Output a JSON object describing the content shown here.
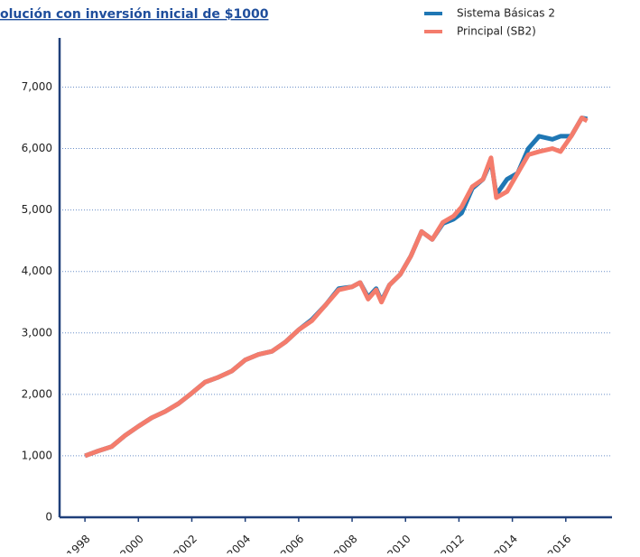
{
  "chart_data": {
    "type": "line",
    "title": "olución con inversión inicial de $1000",
    "series": [
      {
        "name": "Sistema Básicas 2",
        "color": "#1f77b4",
        "x": [
          1998.0,
          1998.5,
          1999.0,
          1999.5,
          2000.0,
          2000.5,
          2001.0,
          2001.5,
          2002.0,
          2002.5,
          2003.0,
          2003.5,
          2004.0,
          2004.5,
          2005.0,
          2005.5,
          2006.0,
          2006.5,
          2007.0,
          2007.5,
          2008.0,
          2008.3,
          2008.6,
          2008.9,
          2009.1,
          2009.4,
          2009.8,
          2010.2,
          2010.6,
          2011.0,
          2011.4,
          2011.8,
          2012.1,
          2012.5,
          2012.9,
          2013.2,
          2013.4,
          2013.8,
          2014.2,
          2014.6,
          2015.0,
          2015.5,
          2015.8,
          2016.2,
          2016.6,
          2016.8
        ],
        "values": [
          1000,
          1080,
          1150,
          1330,
          1480,
          1620,
          1720,
          1850,
          2020,
          2200,
          2280,
          2380,
          2560,
          2650,
          2700,
          2850,
          3050,
          3220,
          3450,
          3720,
          3750,
          3820,
          3580,
          3720,
          3520,
          3780,
          3950,
          4250,
          4650,
          4520,
          4780,
          4850,
          4950,
          5350,
          5500,
          5800,
          5250,
          5500,
          5600,
          6000,
          6200,
          6150,
          6200,
          6200,
          6500,
          6480
        ]
      },
      {
        "name": "Principal (SB2)",
        "color": "#f47c6c",
        "x": [
          1998.0,
          1998.5,
          1999.0,
          1999.5,
          2000.0,
          2000.5,
          2001.0,
          2001.5,
          2002.0,
          2002.5,
          2003.0,
          2003.5,
          2004.0,
          2004.5,
          2005.0,
          2005.5,
          2006.0,
          2006.5,
          2007.0,
          2007.5,
          2008.0,
          2008.3,
          2008.6,
          2008.9,
          2009.1,
          2009.4,
          2009.8,
          2010.2,
          2010.6,
          2011.0,
          2011.4,
          2011.8,
          2012.1,
          2012.5,
          2012.9,
          2013.2,
          2013.4,
          2013.8,
          2014.2,
          2014.6,
          2015.0,
          2015.5,
          2015.8,
          2016.2,
          2016.6,
          2016.8
        ],
        "values": [
          1000,
          1080,
          1150,
          1330,
          1480,
          1620,
          1720,
          1850,
          2020,
          2200,
          2280,
          2380,
          2560,
          2650,
          2700,
          2850,
          3050,
          3200,
          3450,
          3700,
          3750,
          3820,
          3550,
          3700,
          3500,
          3780,
          3950,
          4250,
          4650,
          4520,
          4800,
          4900,
          5050,
          5380,
          5500,
          5850,
          5200,
          5300,
          5600,
          5900,
          5950,
          6000,
          5950,
          6200,
          6500,
          6450
        ]
      }
    ],
    "xlim": [
      1997.05,
      2017.73
    ],
    "ylim": [
      0,
      7800
    ],
    "xticks": [
      1998,
      2000,
      2002,
      2004,
      2006,
      2008,
      2010,
      2012,
      2014,
      2016
    ],
    "yticks": [
      0,
      {
        "value": 1000,
        "label": "1,000"
      },
      {
        "value": 2000,
        "label": "2,000"
      },
      {
        "value": 3000,
        "label": "3,000"
      },
      {
        "value": 4000,
        "label": "4,000"
      },
      {
        "value": 5000,
        "label": "5,000"
      },
      {
        "value": 6000,
        "label": "6,000"
      },
      {
        "value": 7000,
        "label": "7,000"
      }
    ],
    "grid": true,
    "legend": "top-right"
  }
}
